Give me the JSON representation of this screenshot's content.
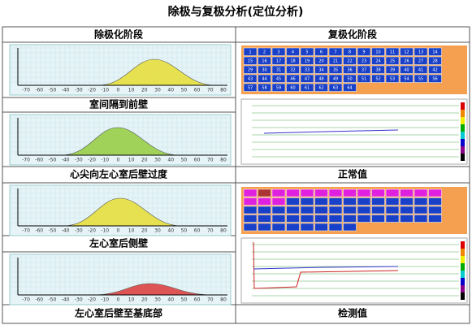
{
  "title": "除极与复极分析(定位分析)",
  "left": {
    "header": "除极化阶段",
    "labels": [
      "室间隔到前壁",
      "心尖向左心室后壁过度",
      "左心室后侧壁",
      "左心室后壁至基底部"
    ]
  },
  "right": {
    "header": "复极化阶段",
    "labels": [
      "正常值",
      "检测值"
    ]
  },
  "axis_labels": [
    -70,
    -60,
    -50,
    -40,
    -30,
    -20,
    -10,
    0,
    10,
    20,
    30,
    40,
    50,
    60,
    70,
    80
  ],
  "grid_cells": [
    1,
    2,
    3,
    4,
    5,
    6,
    7,
    8,
    9,
    10,
    11,
    12,
    13,
    14,
    15,
    16,
    17,
    18,
    19,
    20,
    21,
    22,
    23,
    24,
    25,
    26,
    27,
    28,
    29,
    30,
    31,
    32,
    33,
    34,
    35,
    36,
    37,
    38,
    39,
    40,
    41,
    42,
    43,
    44,
    45,
    46,
    47,
    48,
    49,
    50,
    51,
    52,
    53,
    54,
    55,
    56,
    57,
    58,
    59,
    60,
    61,
    62,
    63,
    64
  ]
}
